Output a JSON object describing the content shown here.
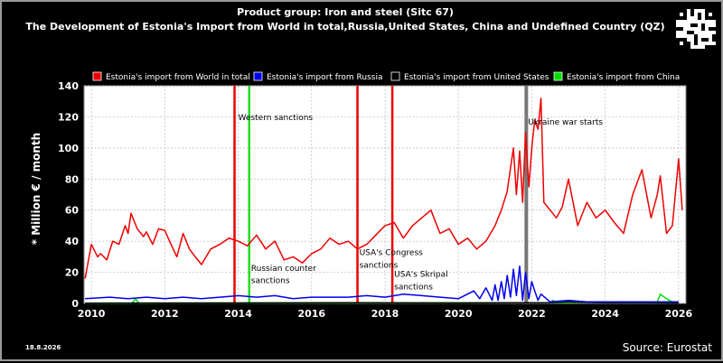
{
  "title_line1": "Product group: Iron and steel (Sitc 67)",
  "title_line2": "The Development of Estonia's Import from World in total,Russia,United States, China and Undefined Country (QZ)",
  "date_stamp": "18.8.2026",
  "source": "Source: Eurostat",
  "qr_icon": "qr-code-icon",
  "colors": {
    "background": "#000000",
    "plot_background": "#ffffff",
    "world": "#ee0000",
    "russia": "#0000ee",
    "us": "#000000",
    "china": "#00dd00",
    "event_red": "#ee0000",
    "event_green": "#22dd22",
    "event_gray": "#777777"
  },
  "chart_data": {
    "type": "line",
    "title": "The Development of Estonia's Import from World in total,Russia,United States, China and Undefined Country (QZ)",
    "ylabel": "* Million € / month",
    "xlabel": "",
    "ylim": [
      0,
      140
    ],
    "xlim": [
      2009.8,
      2026.2
    ],
    "yticks": [
      "0",
      "20",
      "40",
      "60",
      "80",
      "100",
      "120",
      "140"
    ],
    "xticks": [
      "2010",
      "2012",
      "2014",
      "2016",
      "2018",
      "2020",
      "2022",
      "2024",
      "2026"
    ],
    "grid": true,
    "legend_position": "top",
    "series": [
      {
        "name": "Estonia's import from World in total",
        "color": "#ee0000",
        "x": [
          2009.83,
          2010.0,
          2010.17,
          2010.25,
          2010.42,
          2010.58,
          2010.75,
          2010.92,
          2011.0,
          2011.08,
          2011.25,
          2011.42,
          2011.5,
          2011.67,
          2011.83,
          2012.0,
          2012.17,
          2012.33,
          2012.5,
          2012.67,
          2012.83,
          2013.0,
          2013.25,
          2013.5,
          2013.75,
          2014.0,
          2014.25,
          2014.5,
          2014.75,
          2015.0,
          2015.25,
          2015.5,
          2015.75,
          2016.0,
          2016.25,
          2016.5,
          2016.75,
          2017.0,
          2017.25,
          2017.5,
          2017.75,
          2018.0,
          2018.25,
          2018.5,
          2018.75,
          2019.0,
          2019.25,
          2019.5,
          2019.75,
          2020.0,
          2020.25,
          2020.5,
          2020.75,
          2021.0,
          2021.17,
          2021.33,
          2021.5,
          2021.58,
          2021.67,
          2021.75,
          2021.83,
          2021.92,
          2022.0,
          2022.08,
          2022.17,
          2022.25,
          2022.33,
          2022.5,
          2022.67,
          2022.83,
          2023.0,
          2023.25,
          2023.5,
          2023.75,
          2024.0,
          2024.25,
          2024.5,
          2024.75,
          2025.0,
          2025.25,
          2025.42,
          2025.5,
          2025.67,
          2025.83,
          2026.0,
          2026.1
        ],
        "values": [
          16,
          38,
          30,
          32,
          28,
          40,
          38,
          50,
          45,
          58,
          48,
          43,
          46,
          38,
          48,
          47,
          38,
          30,
          45,
          35,
          30,
          25,
          35,
          38,
          42,
          40,
          37,
          44,
          35,
          40,
          28,
          30,
          26,
          32,
          35,
          42,
          38,
          40,
          35,
          38,
          44,
          50,
          52,
          42,
          50,
          55,
          60,
          45,
          48,
          38,
          42,
          35,
          40,
          50,
          60,
          72,
          100,
          70,
          98,
          65,
          110,
          75,
          100,
          118,
          112,
          132,
          65,
          60,
          55,
          62,
          80,
          50,
          65,
          55,
          60,
          52,
          45,
          70,
          86,
          55,
          70,
          82,
          45,
          50,
          93,
          60
        ],
        "ylabel": ""
      },
      {
        "name": "Estonia's import from Russia",
        "color": "#0000ee",
        "x": [
          2009.83,
          2010.5,
          2011.0,
          2011.5,
          2012.0,
          2012.5,
          2013.0,
          2013.5,
          2014.0,
          2014.5,
          2015.0,
          2015.5,
          2016.0,
          2016.5,
          2017.0,
          2017.5,
          2018.0,
          2018.5,
          2019.0,
          2019.5,
          2020.0,
          2020.42,
          2020.58,
          2020.75,
          2020.92,
          2021.0,
          2021.08,
          2021.17,
          2021.25,
          2021.33,
          2021.42,
          2021.5,
          2021.58,
          2021.67,
          2021.75,
          2021.83,
          2021.92,
          2022.0,
          2022.08,
          2022.17,
          2022.25,
          2022.5,
          2023.0,
          2023.5,
          2024.0,
          2024.5,
          2025.0,
          2025.5,
          2026.0
        ],
        "values": [
          3,
          4,
          3,
          4,
          3,
          4,
          3,
          4,
          5,
          4,
          5,
          3,
          4,
          4,
          4,
          5,
          4,
          6,
          5,
          4,
          3,
          8,
          3,
          10,
          2,
          12,
          2,
          14,
          3,
          18,
          4,
          22,
          5,
          24,
          2,
          20,
          3,
          14,
          8,
          2,
          6,
          1,
          2,
          1,
          1,
          1,
          1,
          1,
          1
        ]
      },
      {
        "name": "Estonia's import from United States",
        "color": "#000000",
        "x": [
          2009.83,
          2013.0,
          2017.0,
          2020.0,
          2022.5,
          2023.0,
          2024.0,
          2025.0,
          2026.0
        ],
        "values": [
          0.2,
          0.3,
          0.4,
          0.3,
          0.5,
          1,
          0.4,
          0.5,
          0.3
        ]
      },
      {
        "name": "Estonia's import from China",
        "color": "#00dd00",
        "x": [
          2009.83,
          2011.1,
          2011.2,
          2011.3,
          2012.0,
          2016.0,
          2020.0,
          2022.5,
          2022.58,
          2022.67,
          2023.0,
          2024.0,
          2024.5,
          2025.0,
          2025.42,
          2025.5,
          2025.67,
          2025.83,
          2026.0
        ],
        "values": [
          0,
          0,
          3,
          0,
          0.2,
          0.3,
          0.4,
          0.5,
          2,
          0.5,
          0.5,
          0.8,
          1,
          0.5,
          1,
          6,
          3,
          1,
          0.5
        ]
      }
    ],
    "annotations": [
      {
        "x": 2013.9,
        "color": "#ee0000",
        "label": ""
      },
      {
        "x": 2014.3,
        "color": "#22dd22",
        "label": ""
      },
      {
        "x": 2017.25,
        "color": "#ee0000",
        "label": ""
      },
      {
        "x": 2018.2,
        "color": "#ee0000",
        "label": ""
      },
      {
        "x": 2021.85,
        "color": "#777777",
        "label": ""
      }
    ],
    "annotation_texts": [
      {
        "text": "Western sanctions",
        "x": 2014.0,
        "y": 118
      },
      {
        "text": "Russian counter",
        "x": 2014.35,
        "y": 21
      },
      {
        "text": "sanctions",
        "x": 2014.35,
        "y": 13
      },
      {
        "text": "USA's Congress",
        "x": 2017.3,
        "y": 31
      },
      {
        "text": "sanctions",
        "x": 2017.3,
        "y": 23
      },
      {
        "text": "USA's Skripal",
        "x": 2018.25,
        "y": 17
      },
      {
        "text": "sanctions",
        "x": 2018.25,
        "y": 9
      },
      {
        "text": "Ukraine war starts",
        "x": 2021.9,
        "y": 115
      }
    ]
  }
}
